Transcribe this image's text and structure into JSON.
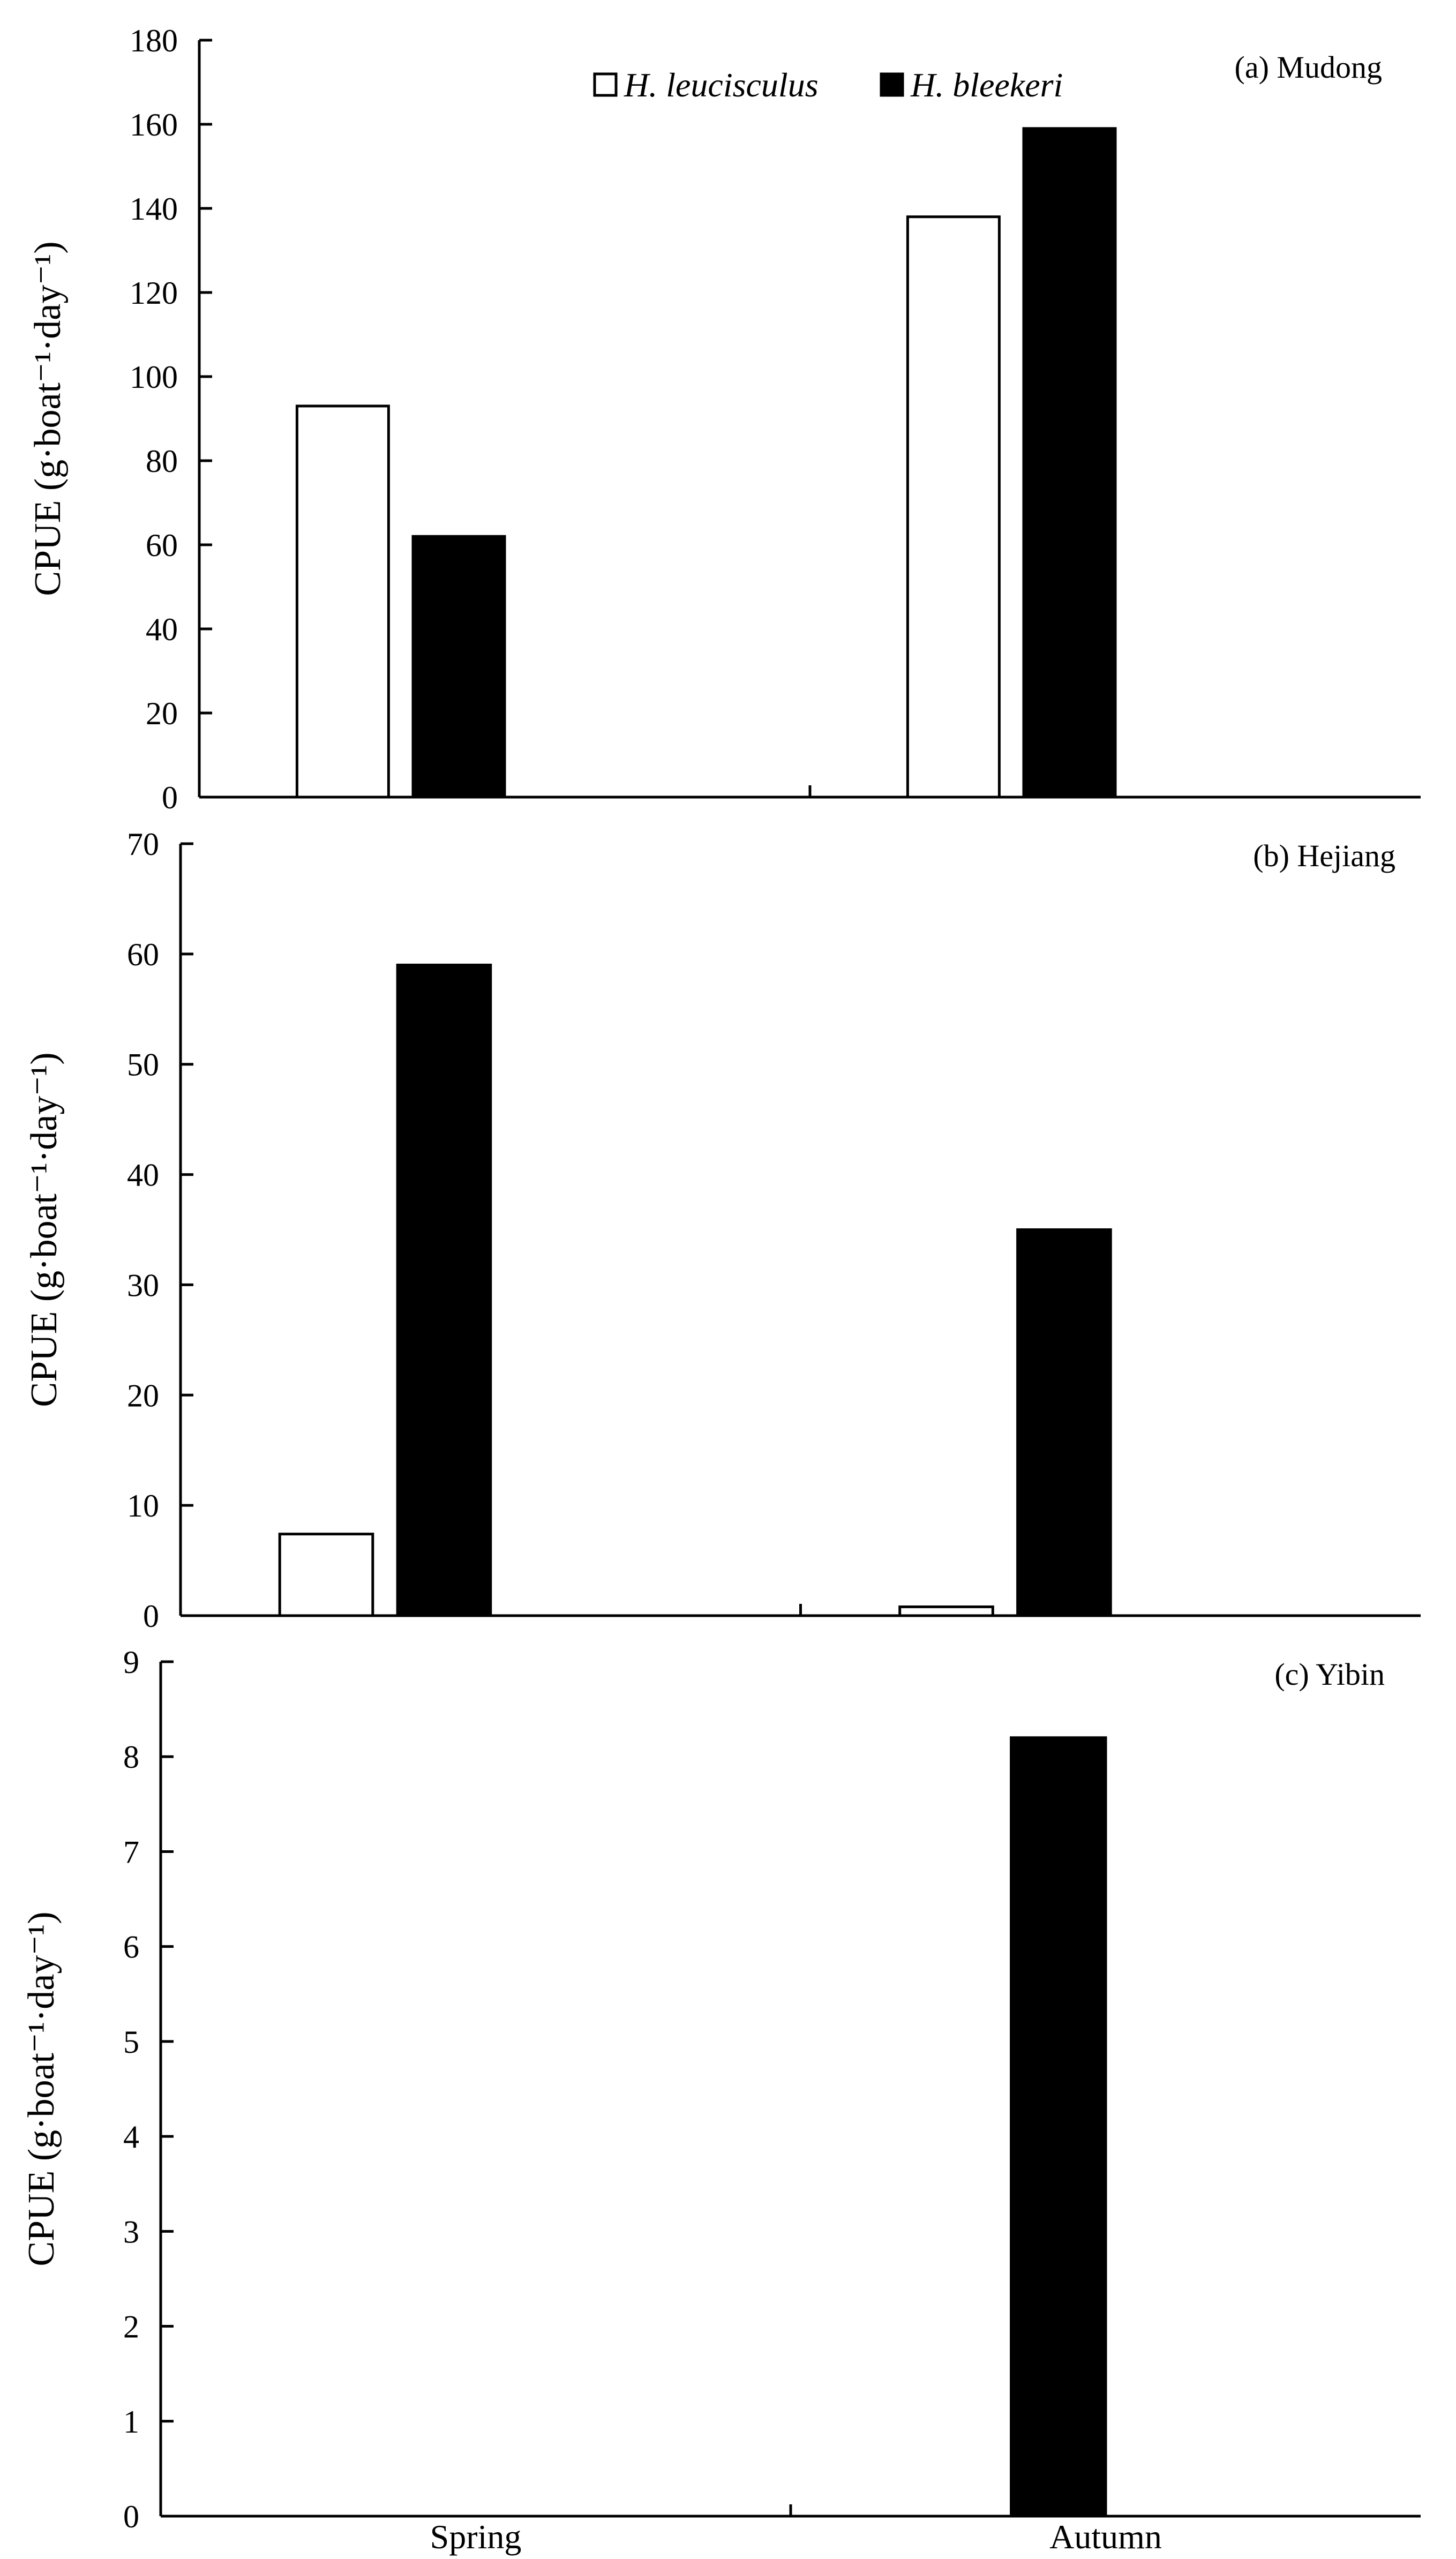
{
  "chart_data": [
    {
      "type": "bar",
      "title": "(a) Mudong",
      "ylabel": "CPUE (g·boat⁻¹·day⁻¹)",
      "categories": [
        "Spring",
        "Autumn"
      ],
      "ylim": [
        0,
        180
      ],
      "yticks": [
        0,
        20,
        40,
        60,
        80,
        100,
        120,
        140,
        160,
        180
      ],
      "series": [
        {
          "name": "H. leucisculus",
          "values": [
            93,
            138
          ]
        },
        {
          "name": "H. bleekeri",
          "values": [
            62,
            159
          ]
        }
      ]
    },
    {
      "type": "bar",
      "title": "(b) Hejiang",
      "ylabel": "CPUE (g·boat⁻¹·day⁻¹)",
      "categories": [
        "Spring",
        "Autumn"
      ],
      "ylim": [
        0,
        70
      ],
      "yticks": [
        0,
        10,
        20,
        30,
        40,
        50,
        60,
        70
      ],
      "series": [
        {
          "name": "H. leucisculus",
          "values": [
            7.4,
            0.8
          ]
        },
        {
          "name": "H. bleekeri",
          "values": [
            59,
            35
          ]
        }
      ]
    },
    {
      "type": "bar",
      "title": "(c) Yibin",
      "ylabel": "CPUE (g·boat⁻¹·day⁻¹)",
      "categories": [
        "Spring",
        "Autumn"
      ],
      "ylim": [
        0,
        9
      ],
      "yticks": [
        0,
        1,
        2,
        3,
        4,
        5,
        6,
        7,
        8,
        9
      ],
      "series": [
        {
          "name": "H. leucisculus",
          "values": [
            0,
            0
          ]
        },
        {
          "name": "H. bleekeri",
          "values": [
            0,
            8.2
          ]
        }
      ]
    }
  ],
  "legend": [
    {
      "label": "H. leucisculus",
      "color": "#ffffff"
    },
    {
      "label": "H. bleekeri",
      "color": "#000000"
    }
  ],
  "colors": {
    "series": [
      "#ffffff",
      "#000000"
    ],
    "axis": "#000000"
  }
}
